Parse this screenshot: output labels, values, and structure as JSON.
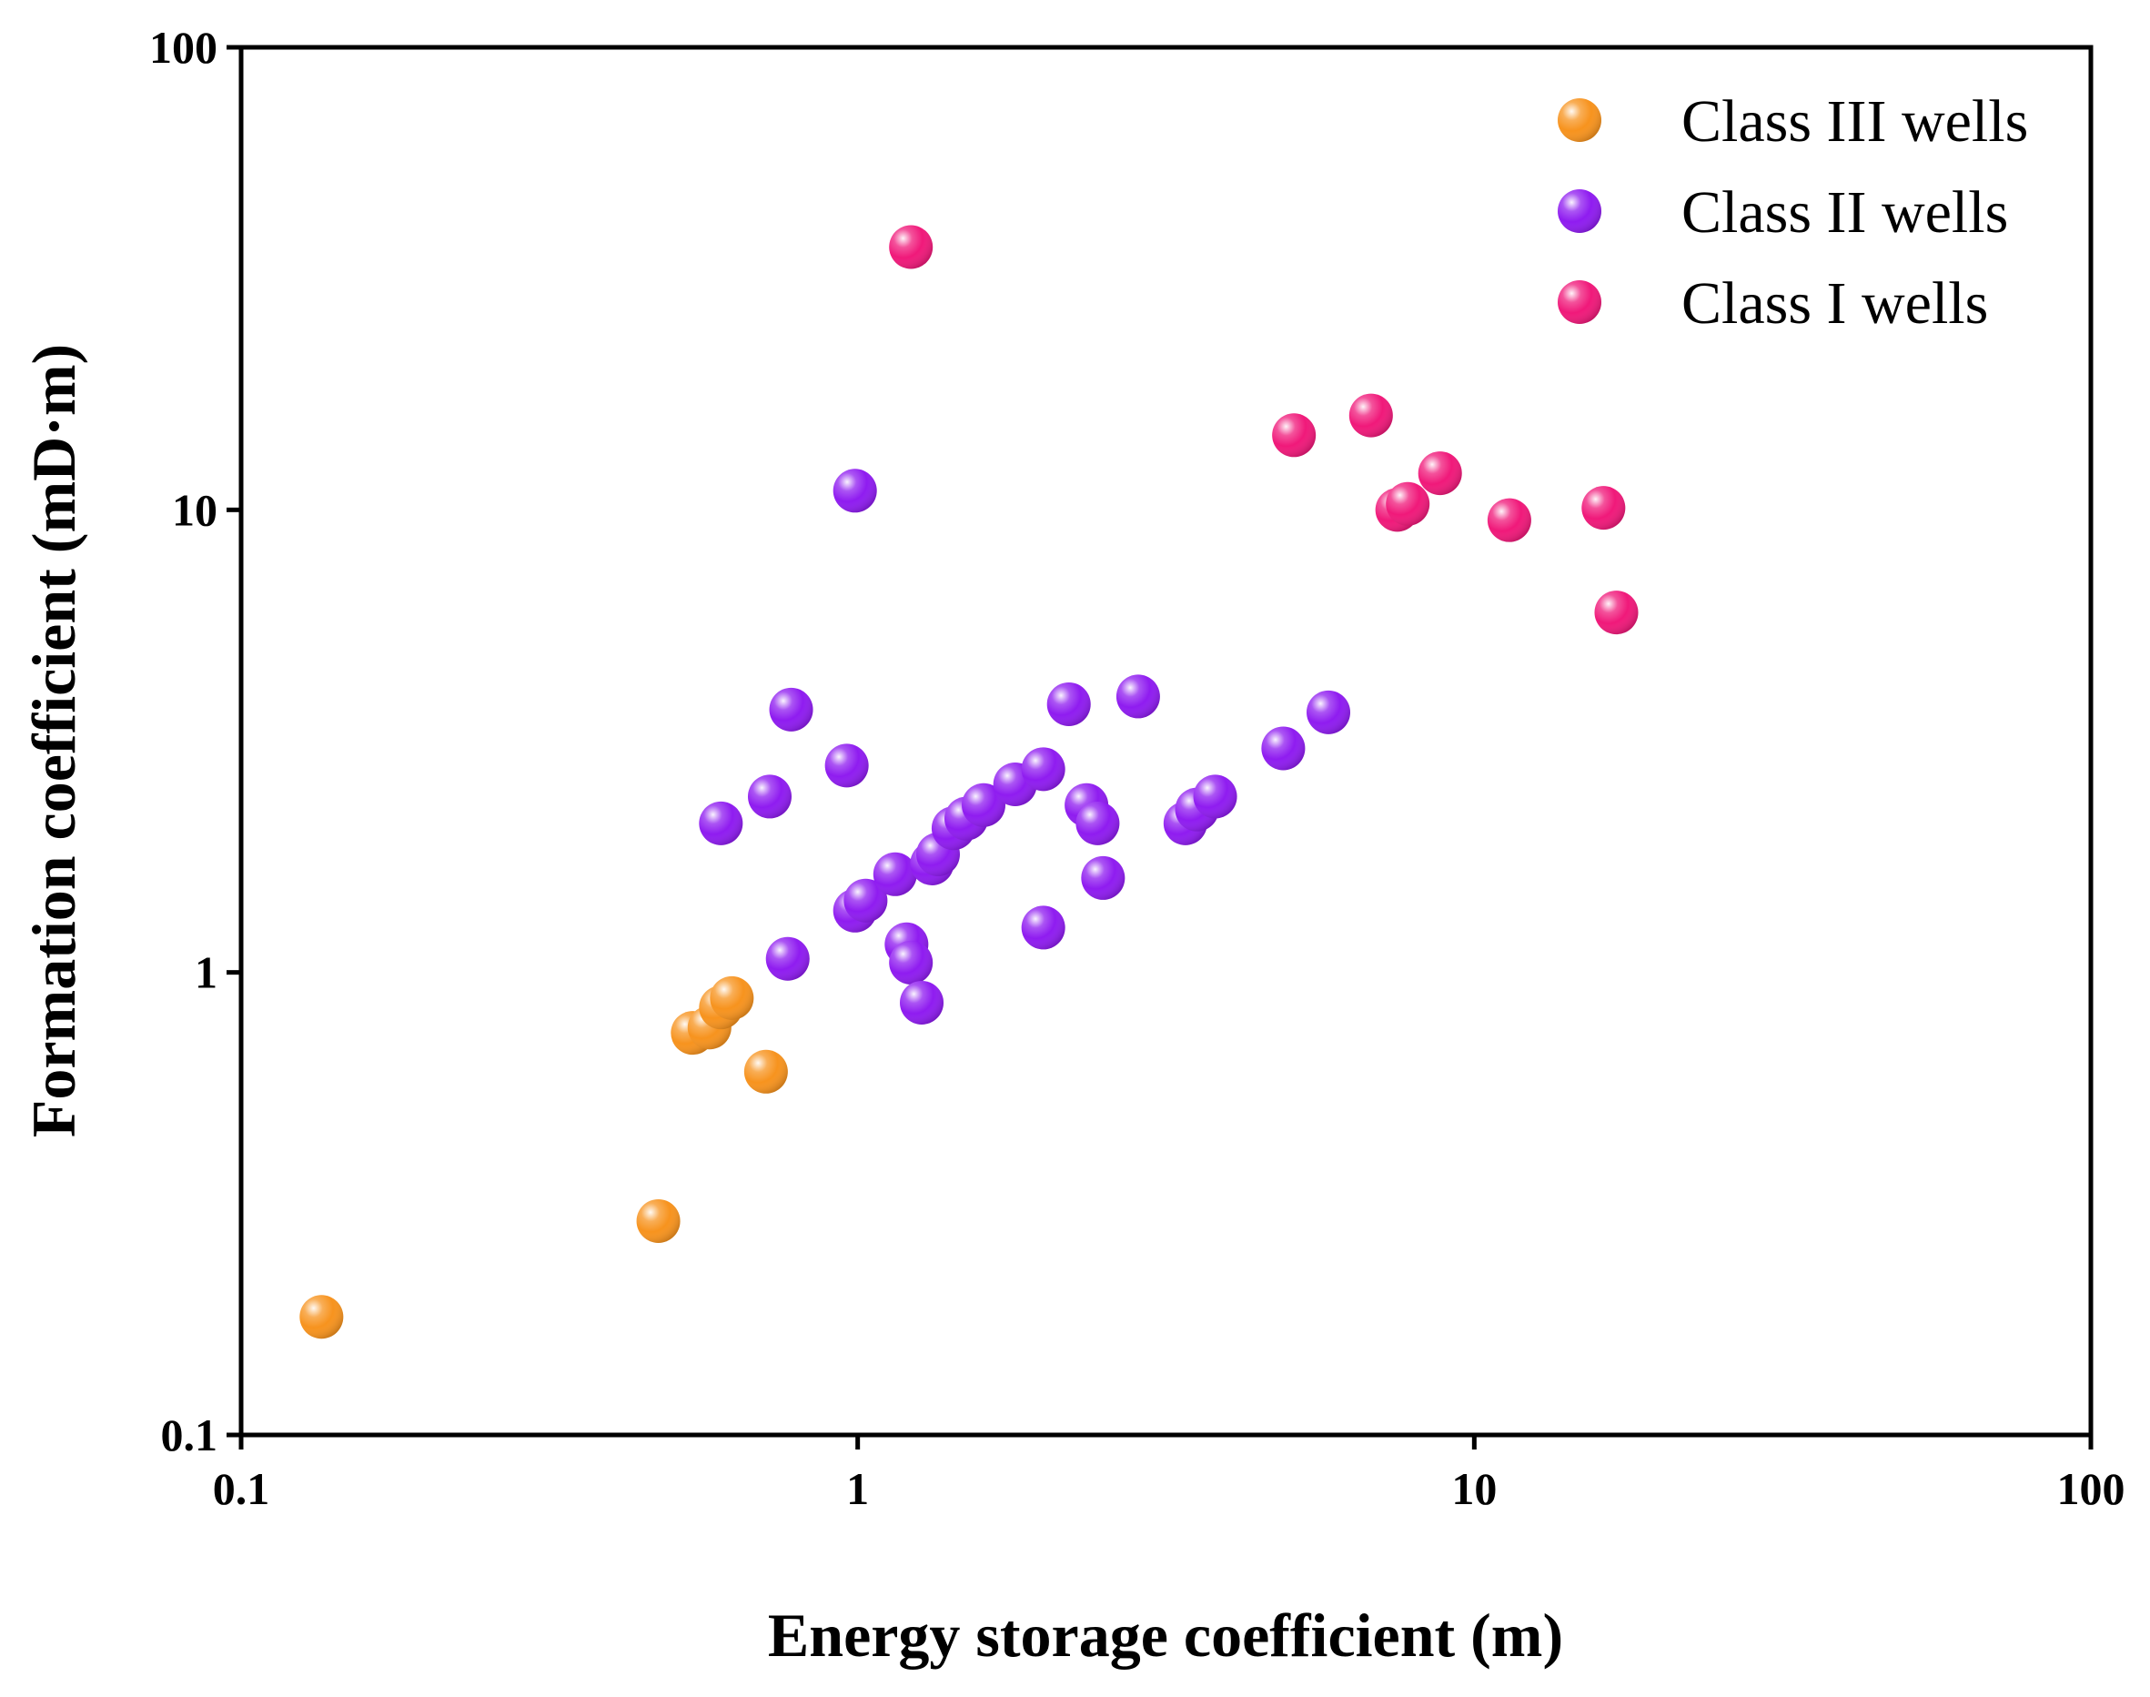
{
  "chart_data": {
    "type": "scatter",
    "title": "",
    "xlabel": "Energy storage coefficient (m)",
    "ylabel": "Formation coefficient (mD·m)",
    "xscale": "log",
    "yscale": "log",
    "xlim": [
      0.1,
      100
    ],
    "ylim": [
      0.1,
      100
    ],
    "x_ticks": [
      0.1,
      1,
      10,
      100
    ],
    "x_tick_labels": [
      "0.1",
      "1",
      "10",
      "100"
    ],
    "y_ticks": [
      0.1,
      1,
      10,
      100
    ],
    "y_tick_labels": [
      "0.1",
      "1",
      "10",
      "100"
    ],
    "grid": false,
    "legend_position": "top-right",
    "series": [
      {
        "name": "Class III wells",
        "color": "#f7931e",
        "x": [
          0.135,
          0.475,
          0.54,
          0.575,
          0.6,
          0.625,
          0.71
        ],
        "y": [
          0.18,
          0.29,
          0.74,
          0.76,
          0.84,
          0.88,
          0.61
        ]
      },
      {
        "name": "Class II wells",
        "color": "#8f1cf0",
        "x": [
          0.99,
          0.6,
          0.78,
          0.72,
          0.96,
          0.77,
          0.99,
          1.03,
          1.15,
          1.2,
          1.22,
          1.27,
          1.32,
          1.35,
          1.43,
          1.5,
          1.6,
          1.8,
          2.0,
          2.2,
          2.35,
          2.45,
          2.5,
          2.85,
          3.4,
          3.55,
          3.8,
          2.0,
          4.9,
          5.8
        ],
        "y": [
          11.0,
          2.1,
          3.7,
          2.4,
          2.8,
          1.07,
          1.36,
          1.43,
          1.63,
          1.15,
          1.05,
          0.86,
          1.72,
          1.8,
          2.05,
          2.15,
          2.3,
          2.55,
          2.75,
          3.8,
          2.3,
          2.1,
          1.6,
          3.95,
          2.1,
          2.25,
          2.4,
          1.25,
          3.05,
          3.65
        ]
      },
      {
        "name": "Class I wells",
        "color": "#f0197a",
        "x": [
          1.22,
          5.1,
          6.8,
          7.5,
          7.8,
          8.8,
          11.4,
          16.2,
          17.0
        ],
        "y": [
          37.0,
          14.5,
          16.0,
          10.0,
          10.3,
          12.0,
          9.5,
          10.1,
          6.0
        ]
      }
    ]
  }
}
